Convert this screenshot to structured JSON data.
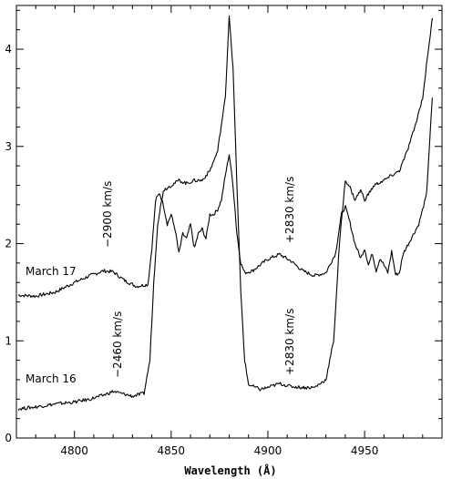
{
  "chart_data": {
    "type": "line",
    "title": "",
    "xlabel": "Wavelength (Å)",
    "ylabel": "",
    "xlim": [
      4770,
      4990
    ],
    "ylim": [
      0,
      4.45
    ],
    "x_ticks": [
      4800,
      4850,
      4900,
      4950
    ],
    "y_ticks": [
      0,
      1,
      2,
      3,
      4
    ],
    "grid": false,
    "series": [
      {
        "name": "March 17",
        "points": [
          [
            4771,
            1.47
          ],
          [
            4780,
            1.46
          ],
          [
            4790,
            1.5
          ],
          [
            4800,
            1.6
          ],
          [
            4808,
            1.67
          ],
          [
            4815,
            1.72
          ],
          [
            4820,
            1.71
          ],
          [
            4826,
            1.62
          ],
          [
            4832,
            1.56
          ],
          [
            4838,
            1.58
          ],
          [
            4840,
            1.95
          ],
          [
            4842,
            2.45
          ],
          [
            4844,
            2.52
          ],
          [
            4846,
            2.4
          ],
          [
            4848,
            2.2
          ],
          [
            4850,
            2.3
          ],
          [
            4852,
            2.15
          ],
          [
            4854,
            1.9
          ],
          [
            4856,
            2.1
          ],
          [
            4858,
            2.05
          ],
          [
            4860,
            2.2
          ],
          [
            4862,
            1.95
          ],
          [
            4864,
            2.1
          ],
          [
            4866,
            2.15
          ],
          [
            4868,
            2.05
          ],
          [
            4870,
            2.3
          ],
          [
            4872,
            2.3
          ],
          [
            4874,
            2.35
          ],
          [
            4876,
            2.45
          ],
          [
            4878,
            2.7
          ],
          [
            4880,
            2.92
          ],
          [
            4882,
            2.6
          ],
          [
            4884,
            2.1
          ],
          [
            4886,
            1.8
          ],
          [
            4888,
            1.7
          ],
          [
            4892,
            1.72
          ],
          [
            4896,
            1.78
          ],
          [
            4900,
            1.84
          ],
          [
            4906,
            1.89
          ],
          [
            4912,
            1.82
          ],
          [
            4918,
            1.72
          ],
          [
            4924,
            1.67
          ],
          [
            4930,
            1.7
          ],
          [
            4935,
            1.9
          ],
          [
            4938,
            2.3
          ],
          [
            4940,
            2.38
          ],
          [
            4942,
            2.25
          ],
          [
            4945,
            2.0
          ],
          [
            4948,
            1.85
          ],
          [
            4950,
            1.95
          ],
          [
            4952,
            1.78
          ],
          [
            4954,
            1.9
          ],
          [
            4956,
            1.72
          ],
          [
            4958,
            1.85
          ],
          [
            4960,
            1.78
          ],
          [
            4962,
            1.7
          ],
          [
            4964,
            1.92
          ],
          [
            4966,
            1.68
          ],
          [
            4968,
            1.7
          ],
          [
            4970,
            1.9
          ],
          [
            4974,
            2.05
          ],
          [
            4978,
            2.2
          ],
          [
            4982,
            2.5
          ],
          [
            4985,
            3.5
          ]
        ]
      },
      {
        "name": "March 16",
        "points": [
          [
            4771,
            0.3
          ],
          [
            4780,
            0.32
          ],
          [
            4790,
            0.35
          ],
          [
            4800,
            0.37
          ],
          [
            4808,
            0.4
          ],
          [
            4815,
            0.44
          ],
          [
            4820,
            0.48
          ],
          [
            4826,
            0.45
          ],
          [
            4830,
            0.43
          ],
          [
            4836,
            0.46
          ],
          [
            4839,
            0.8
          ],
          [
            4841,
            1.6
          ],
          [
            4843,
            2.2
          ],
          [
            4846,
            2.55
          ],
          [
            4850,
            2.6
          ],
          [
            4854,
            2.65
          ],
          [
            4858,
            2.62
          ],
          [
            4862,
            2.65
          ],
          [
            4866,
            2.65
          ],
          [
            4870,
            2.75
          ],
          [
            4874,
            2.95
          ],
          [
            4878,
            3.5
          ],
          [
            4880,
            4.35
          ],
          [
            4882,
            3.8
          ],
          [
            4884,
            2.6
          ],
          [
            4886,
            1.5
          ],
          [
            4888,
            0.8
          ],
          [
            4890,
            0.55
          ],
          [
            4896,
            0.5
          ],
          [
            4900,
            0.52
          ],
          [
            4906,
            0.56
          ],
          [
            4912,
            0.53
          ],
          [
            4918,
            0.52
          ],
          [
            4924,
            0.52
          ],
          [
            4930,
            0.6
          ],
          [
            4934,
            1.0
          ],
          [
            4937,
            2.0
          ],
          [
            4940,
            2.65
          ],
          [
            4942,
            2.6
          ],
          [
            4945,
            2.45
          ],
          [
            4948,
            2.55
          ],
          [
            4950,
            2.45
          ],
          [
            4955,
            2.6
          ],
          [
            4960,
            2.65
          ],
          [
            4964,
            2.7
          ],
          [
            4968,
            2.75
          ],
          [
            4972,
            2.95
          ],
          [
            4976,
            3.2
          ],
          [
            4980,
            3.5
          ],
          [
            4983,
            4.0
          ],
          [
            4985,
            4.32
          ]
        ]
      }
    ],
    "annotations": {
      "march17_label": "March 17",
      "march16_label": "March 16",
      "vel_m17_left": "−2900 km/s",
      "vel_m17_right": "+2830 km/s",
      "vel_m16_left": "−2460 km/s",
      "vel_m16_right": "+2830 km/s"
    }
  }
}
